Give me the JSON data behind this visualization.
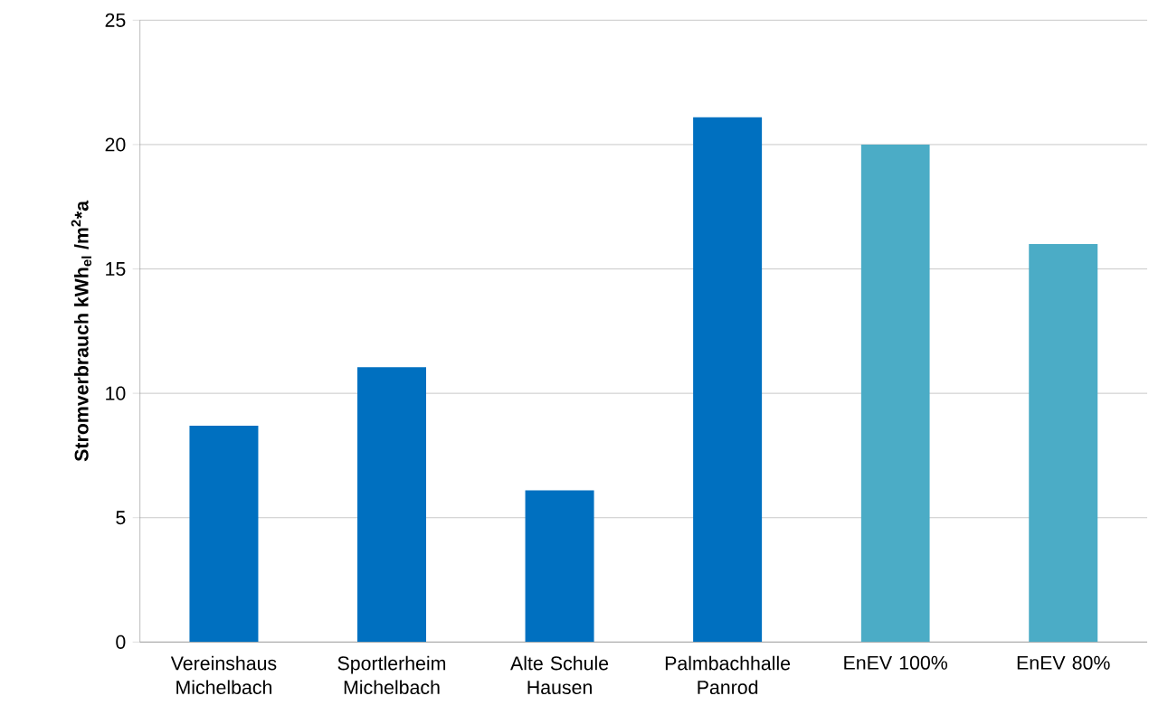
{
  "chart_data": {
    "type": "bar",
    "ylabel": "**Stromverbrauch kWh$_{el}$ /m$^{2}$*a**",
    "categories": [
      "Vereinshaus Michelbach",
      "Sportlerheim Michelbach",
      "Alte Schule Hausen",
      "Palmbachhalle Panrod",
      "EnEV 100%",
      "EnEV 80%"
    ],
    "values": [
      8.7,
      11.05,
      6.1,
      21.1,
      20,
      16
    ],
    "colors": [
      "#0070c0",
      "#0070c0",
      "#0070c0",
      "#0070c0",
      "#4bacc6",
      "#4bacc6"
    ],
    "ylim": [
      0,
      25
    ],
    "yticks": [
      0,
      5,
      10,
      15,
      20,
      25
    ],
    "grid": "y"
  }
}
